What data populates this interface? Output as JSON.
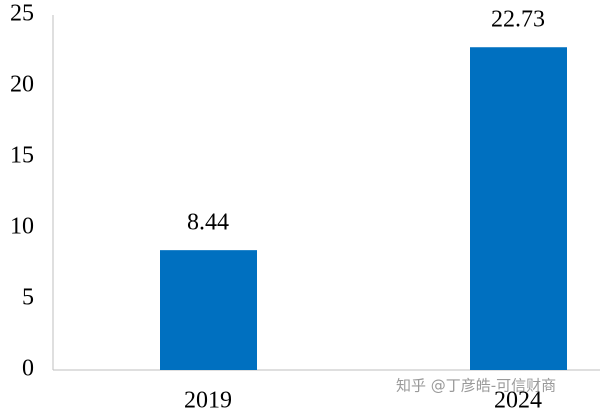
{
  "chart_data": {
    "type": "bar",
    "categories": [
      "2019",
      "2024"
    ],
    "values": [
      8.44,
      22.73
    ],
    "value_labels": [
      "8.44",
      "22.73"
    ],
    "color": "#0070c0",
    "ylim": [
      0,
      25
    ],
    "yticks": [
      0,
      5,
      10,
      15,
      20,
      25
    ],
    "grid": false,
    "watermark": "知乎 @丁彦皓-可信财商"
  }
}
